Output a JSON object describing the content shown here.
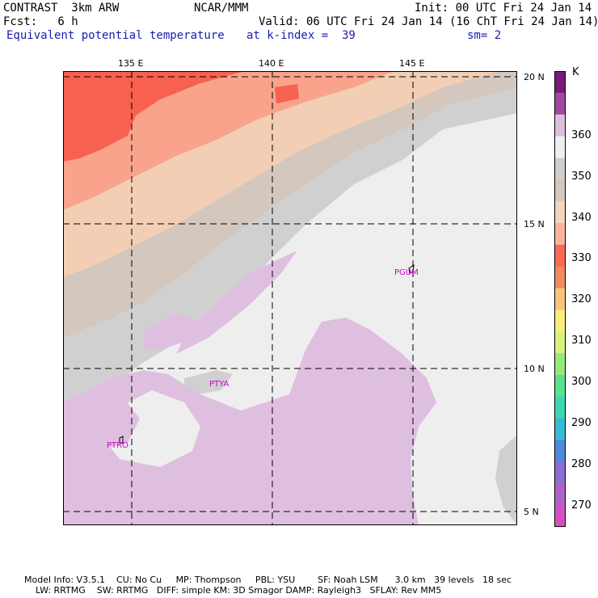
{
  "header": {
    "model": "CONTRAST  3km ARW",
    "org": "NCAR/MMM",
    "init": "Init: 00 UTC Fri 24 Jan 14",
    "fcst": "Fcst:   6 h",
    "valid": "Valid: 06 UTC Fri 24 Jan 14 (16 ChT Fri 24 Jan 14)",
    "field": "Equivalent potential temperature",
    "level": "at k-index =  39",
    "smooth": "sm= 2"
  },
  "axes": {
    "lon_labels": [
      "135 E",
      "140 E",
      "145 E"
    ],
    "lat_labels": [
      "20 N",
      "15 N",
      "10 N",
      "5 N"
    ]
  },
  "colorbar": {
    "unit": "K",
    "labels": [
      "360",
      "350",
      "340",
      "330",
      "320",
      "310",
      "300",
      "290",
      "280",
      "270"
    ],
    "colors_top_to_bottom": [
      "#7a1a7a",
      "#a0489e",
      "#dcbfdd",
      "#efefef",
      "#cfcfcf",
      "#d4c7bd",
      "#f2d5bf",
      "#fbb49b",
      "#f96a55",
      "#f08a5e",
      "#f8c478",
      "#f8f07a",
      "#d8f27e",
      "#96ea7c",
      "#5ae08e",
      "#3ad8b0",
      "#3ab8d4",
      "#4e8ad8",
      "#8c6ed6",
      "#b061c8",
      "#d451c2"
    ]
  },
  "stations": [
    "PGUM",
    "PTYA",
    "PTRO"
  ],
  "footer": {
    "line1": "Model Info: V3.5.1    CU: No Cu     MP: Thompson     PBL: YSU        SF: Noah LSM      3.0 km   39 levels   18 sec",
    "line2": "    LW: RRTMG    SW: RRTMG   DIFF: simple KM: 3D Smagor DAMP: Rayleigh3   SFLAY: Rev MM5"
  },
  "palette": {
    "c330": "#f8604f",
    "c335": "#f9a38c",
    "c340": "#f2cfb4",
    "c345": "#d3c7be",
    "c350": "#d0d0d0",
    "c355": "#eeeeee",
    "c360": "#dfbfdf"
  }
}
